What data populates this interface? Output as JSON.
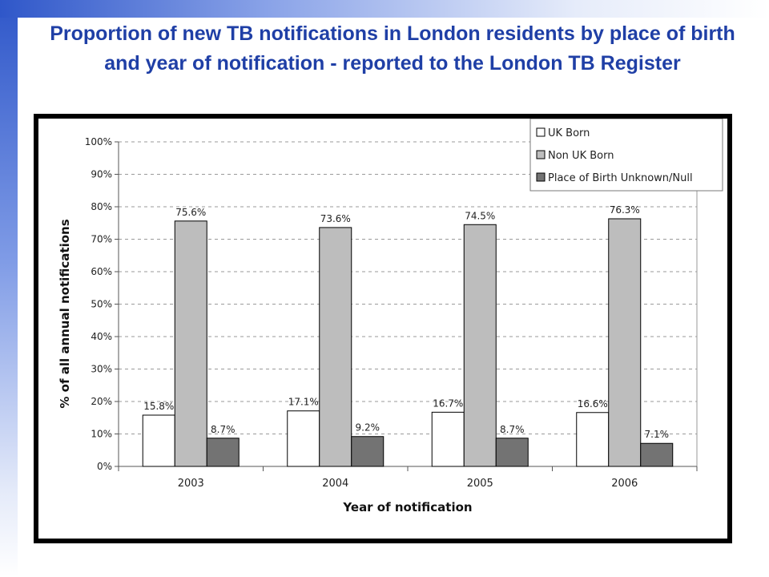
{
  "page": {
    "title": "Proportion of new TB notifications in London residents by place of birth and year of notification - reported to the London TB Register"
  },
  "chart_data": {
    "type": "bar",
    "title": "",
    "xlabel": "Year of notification",
    "ylabel": "% of all annual notifications",
    "categories": [
      "2003",
      "2004",
      "2005",
      "2006"
    ],
    "ylim": [
      0,
      100
    ],
    "y_ticks": [
      "0%",
      "10%",
      "20%",
      "30%",
      "40%",
      "50%",
      "60%",
      "70%",
      "80%",
      "90%",
      "100%"
    ],
    "grid": true,
    "legend_position": "top-right",
    "series": [
      {
        "name": "UK Born",
        "values": [
          15.8,
          17.1,
          16.7,
          16.6
        ],
        "labels": [
          "15.8%",
          "17.1%",
          "16.7%",
          "16.6%"
        ],
        "color": "#ffffff"
      },
      {
        "name": "Non UK Born",
        "values": [
          75.6,
          73.6,
          74.5,
          76.3
        ],
        "labels": [
          "75.6%",
          "73.6%",
          "74.5%",
          "76.3%"
        ],
        "color": "#bdbdbd"
      },
      {
        "name": "Place of Birth Unknown/Null",
        "values": [
          8.7,
          9.2,
          8.7,
          7.1
        ],
        "labels": [
          "8.7%",
          "9.2%",
          "8.7%",
          "7.1%"
        ],
        "color": "#737373"
      }
    ]
  }
}
